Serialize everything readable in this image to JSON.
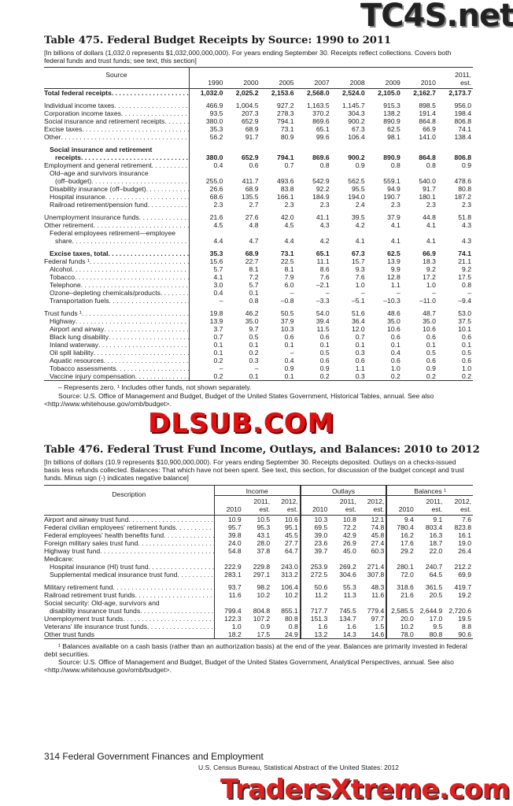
{
  "watermarks": {
    "top": "TC4S.net",
    "middle": "DLSUB.COM",
    "bottom": "TradersXtreme.com"
  },
  "t475": {
    "title": "Table 475. Federal Budget Receipts by Source: 1990 to 2011",
    "headnote": "[In billions of dollars (1,032.0 represents $1,032,000,000,000). For years ending September 30. Receipts reflect collections. Covers both federal funds and trust funds; see text, this section]",
    "stub_header": "Source",
    "columns": [
      "1990",
      "2000",
      "2005",
      "2007",
      "2008",
      "2009",
      "2010",
      "2011, est."
    ],
    "rows": [
      {
        "label": "Total federal receipts",
        "bold": true,
        "indent": 0,
        "values": [
          "1,032.0",
          "2,025.2",
          "2,153.6",
          "2,568.0",
          "2,524.0",
          "2,105.0",
          "2,162.7",
          "2,173.7"
        ]
      },
      {
        "spacer": true
      },
      {
        "label": "Individual income taxes",
        "indent": 0,
        "values": [
          "466.9",
          "1,004.5",
          "927.2",
          "1,163.5",
          "1,145.7",
          "915.3",
          "898.5",
          "956.0"
        ]
      },
      {
        "label": "Corporation income taxes",
        "indent": 0,
        "values": [
          "93.5",
          "207.3",
          "278.3",
          "370.2",
          "304.3",
          "138.2",
          "191.4",
          "198.4"
        ]
      },
      {
        "label": "Social insurance and retirement receipts",
        "indent": 0,
        "values": [
          "380.0",
          "652.9",
          "794.1",
          "869.6",
          "900.2",
          "890.9",
          "864.8",
          "806.8"
        ]
      },
      {
        "label": "Excise taxes",
        "indent": 0,
        "values": [
          "35.3",
          "68.9",
          "73.1",
          "65.1",
          "67.3",
          "62.5",
          "66.9",
          "74.1"
        ]
      },
      {
        "label": "Other",
        "indent": 0,
        "values": [
          "56.2",
          "91.7",
          "80.9",
          "99.6",
          "106.4",
          "98.1",
          "141.0",
          "138.4"
        ]
      },
      {
        "spacer": true
      },
      {
        "label": "Social insurance and retirement",
        "bold": true,
        "indent": 1,
        "nodots": true,
        "values": []
      },
      {
        "label": "receipts",
        "bold": true,
        "indent": 2,
        "values": [
          "380.0",
          "652.9",
          "794.1",
          "869.6",
          "900.2",
          "890.9",
          "864.8",
          "806.8"
        ]
      },
      {
        "label": "Employment and general retirement",
        "indent": 0,
        "values": [
          "0.4",
          "0.6",
          "0.7",
          "0.8",
          "0.9",
          "0.8",
          "0.8",
          "0.9"
        ]
      },
      {
        "label": "Old–age and survivors insurance",
        "indent": 1,
        "nodots": true,
        "values": []
      },
      {
        "label": "(off–budget)",
        "indent": 2,
        "values": [
          "255.0",
          "411.7",
          "493.6",
          "542.9",
          "562.5",
          "559.1",
          "540.0",
          "478.6"
        ]
      },
      {
        "label": "Disability insurance (off–budget)",
        "indent": 1,
        "values": [
          "26.6",
          "68.9",
          "83.8",
          "92.2",
          "95.5",
          "94.9",
          "91.7",
          "80.8"
        ]
      },
      {
        "label": "Hospital insurance",
        "indent": 1,
        "values": [
          "68.6",
          "135.5",
          "166.1",
          "184.9",
          "194.0",
          "190.7",
          "180.1",
          "187.2"
        ]
      },
      {
        "label": "Railroad retirement/pension fund",
        "indent": 1,
        "values": [
          "2.3",
          "2.7",
          "2.3",
          "2.3",
          "2.4",
          "2.3",
          "2.3",
          "2.3"
        ]
      },
      {
        "spacer": true
      },
      {
        "label": "Unemployment insurance funds",
        "indent": 0,
        "values": [
          "21.6",
          "27.6",
          "42.0",
          "41.1",
          "39.5",
          "37.9",
          "44.8",
          "51.8"
        ]
      },
      {
        "label": "Other retirement",
        "indent": 0,
        "values": [
          "4.5",
          "4.8",
          "4.5",
          "4.3",
          "4.2",
          "4.1",
          "4.1",
          "4.3"
        ]
      },
      {
        "label": "Federal employees retirement—employee",
        "indent": 1,
        "nodots": true,
        "values": []
      },
      {
        "label": "share",
        "indent": 2,
        "values": [
          "4.4",
          "4.7",
          "4.4",
          "4.2",
          "4.1",
          "4.1",
          "4.1",
          "4.3"
        ]
      },
      {
        "spacer": true
      },
      {
        "label": "Excise taxes, total",
        "bold": true,
        "indent": 1,
        "values": [
          "35.3",
          "68.9",
          "73.1",
          "65.1",
          "67.3",
          "62.5",
          "66.9",
          "74.1"
        ]
      },
      {
        "label": "Federal funds ¹",
        "indent": 0,
        "values": [
          "15.6",
          "22.7",
          "22.5",
          "11.1",
          "15.7",
          "13.9",
          "18.3",
          "21.1"
        ]
      },
      {
        "label": "Alcohol",
        "indent": 1,
        "values": [
          "5.7",
          "8.1",
          "8.1",
          "8.6",
          "9.3",
          "9.9",
          "9.2",
          "9.2"
        ]
      },
      {
        "label": "Tobacco",
        "indent": 1,
        "values": [
          "4.1",
          "7.2",
          "7.9",
          "7.6",
          "7.6",
          "12.8",
          "17.2",
          "17.5"
        ]
      },
      {
        "label": "Telephone",
        "indent": 1,
        "values": [
          "3.0",
          "5.7",
          "6.0",
          "–2.1",
          "1.0",
          "1.1",
          "1.0",
          "0.8"
        ]
      },
      {
        "label": "Ozone–depleting chemicals/products",
        "indent": 1,
        "values": [
          "0.4",
          "0.1",
          "–",
          "–",
          "–",
          "–",
          "–",
          "–"
        ]
      },
      {
        "label": "Transportation fuels",
        "indent": 1,
        "values": [
          "–",
          "0.8",
          "–0.8",
          "–3.3",
          "–5.1",
          "–10.3",
          "–11.0",
          "–9.4"
        ]
      },
      {
        "spacer": true
      },
      {
        "label": "Trust funds ¹",
        "indent": 0,
        "values": [
          "19.8",
          "46.2",
          "50.5",
          "54.0",
          "51.6",
          "48.6",
          "48.7",
          "53.0"
        ]
      },
      {
        "label": "Highway",
        "indent": 1,
        "values": [
          "13.9",
          "35.0",
          "37.9",
          "39.4",
          "36.4",
          "35.0",
          "35.0",
          "37.5"
        ]
      },
      {
        "label": "Airport and airway",
        "indent": 1,
        "values": [
          "3.7",
          "9.7",
          "10.3",
          "11.5",
          "12.0",
          "10.6",
          "10.6",
          "10.1"
        ]
      },
      {
        "label": "Black lung disability",
        "indent": 1,
        "values": [
          "0.7",
          "0.5",
          "0.6",
          "0.6",
          "0.7",
          "0.6",
          "0.6",
          "0.6"
        ]
      },
      {
        "label": "Inland waterway",
        "indent": 1,
        "values": [
          "0.1",
          "0.1",
          "0.1",
          "0.1",
          "0.1",
          "0.1",
          "0.1",
          "0.1"
        ]
      },
      {
        "label": "Oil spill liability",
        "indent": 1,
        "values": [
          "0.1",
          "0.2",
          "–",
          "0.5",
          "0.3",
          "0.4",
          "0.5",
          "0.5"
        ]
      },
      {
        "label": "Aquatic resources",
        "indent": 1,
        "values": [
          "0.2",
          "0.3",
          "0.4",
          "0.6",
          "0.6",
          "0.6",
          "0.6",
          "0.6"
        ]
      },
      {
        "label": "Tobacco assessments",
        "indent": 1,
        "values": [
          "–",
          "–",
          "0.9",
          "0.9",
          "1.1",
          "1.0",
          "0.9",
          "1.0"
        ]
      },
      {
        "label": "Vaccine injury compensation",
        "indent": 1,
        "values": [
          "0.2",
          "0.1",
          "0.1",
          "0.2",
          "0.3",
          "0.2",
          "0.2",
          "0.2"
        ]
      }
    ],
    "footnote": "– Represents zero. ¹ Includes other funds, not shown separately.",
    "source": "Source: U.S. Office of Management and Budget, Budget of the United States Government, Historical Tables, annual. See also <http://www.whitehouse.gov/omb/budget>."
  },
  "t476": {
    "title": "Table 476. Federal Trust Fund Income, Outlays, and Balances: 2010 to 2012",
    "headnote": "[In billions of dollars (10.9 represents $10,900,000,000). For years ending September 30. Receipts deposited. Outlays on a checks-issued basis less refunds collected. Balances: That which have not been spent. See text, this section, for discussion of the budget concept and trust funds. Minus sign (-) indicates negative balance]",
    "stub_header": "Description",
    "groups": [
      "Income",
      "Outlays",
      "Balances ¹"
    ],
    "columns": [
      "2010",
      "2011, est.",
      "2012, est.",
      "2010",
      "2011, est.",
      "2012, est.",
      "2010",
      "2011, est.",
      "2012, est."
    ],
    "rows": [
      {
        "label": "Airport and airway trust fund",
        "indent": 0,
        "values": [
          "10.9",
          "10.5",
          "10.6",
          "10.3",
          "10.8",
          "12.1",
          "9.4",
          "9.1",
          "7.6"
        ]
      },
      {
        "label": "Federal civilian employees' retirement funds",
        "indent": 0,
        "values": [
          "95.7",
          "95.3",
          "95.1",
          "69.5",
          "72.2",
          "74.8",
          "780.4",
          "803.4",
          "823.8"
        ]
      },
      {
        "label": "Federal employees' health benefits fund",
        "indent": 0,
        "values": [
          "39.8",
          "43.1",
          "45.5",
          "39.0",
          "42.9",
          "45.8",
          "16.2",
          "16.3",
          "16.1"
        ]
      },
      {
        "label": "Foreign military sales trust fund",
        "indent": 0,
        "values": [
          "24.0",
          "28.0",
          "27.7",
          "23.6",
          "26.9",
          "27.4",
          "17.6",
          "18.7",
          "19.0"
        ]
      },
      {
        "label": "Highway trust fund",
        "indent": 0,
        "values": [
          "54.8",
          "37.8",
          "64.7",
          "39.7",
          "45.0",
          "60.3",
          "29.2",
          "22.0",
          "26.4"
        ]
      },
      {
        "label": "Medicare:",
        "indent": 0,
        "values": []
      },
      {
        "label": "Hospital insurance (HI) trust fund",
        "indent": 1,
        "values": [
          "222.9",
          "229.8",
          "243.0",
          "253.9",
          "269.2",
          "271.4",
          "280.1",
          "240.7",
          "212.2"
        ]
      },
      {
        "label": "Supplemental medical insurance trust fund",
        "indent": 1,
        "values": [
          "283.1",
          "297.1",
          "313.2",
          "272.5",
          "304.6",
          "307.8",
          "72.0",
          "64.5",
          "69.9"
        ]
      },
      {
        "spacer": true
      },
      {
        "label": "Military retirement fund",
        "indent": 0,
        "values": [
          "93.7",
          "98.2",
          "106.4",
          "50.6",
          "55.3",
          "48.3",
          "318.6",
          "361.5",
          "419.7"
        ]
      },
      {
        "label": "Railroad retirement trust funds",
        "indent": 0,
        "values": [
          "11.6",
          "10.2",
          "10.2",
          "11.2",
          "11.3",
          "11.6",
          "21.6",
          "20.5",
          "19.2"
        ]
      },
      {
        "label": "Social security: Old-age, survivors and",
        "indent": 0,
        "nodots": true,
        "values": []
      },
      {
        "label": "disability insurance trust funds",
        "indent": 1,
        "values": [
          "799.4",
          "804.8",
          "855.1",
          "717.7",
          "745.5",
          "779.4",
          "2,585.5",
          "2,644.9",
          "2,720.6"
        ]
      },
      {
        "label": "Unemployment trust funds",
        "indent": 0,
        "values": [
          "122.3",
          "107.2",
          "80.8",
          "151.3",
          "134.7",
          "97.7",
          "20.0",
          "17.0",
          "19.5"
        ]
      },
      {
        "label": "Veterans' life insurance trust funds",
        "indent": 0,
        "values": [
          "1.0",
          "0.9",
          "0.8",
          "1.6",
          "1.6",
          "1.5",
          "10.2",
          "9.5",
          "8.8"
        ]
      },
      {
        "label": "Other trust funds",
        "indent": 0,
        "nodots": true,
        "values": [
          "18.2",
          "17.5",
          "24.9",
          "13.2",
          "14.3",
          "14.6",
          "78.0",
          "80.8",
          "90.6"
        ]
      }
    ],
    "footnote": "¹ Balances available on a cash basis (rather than an authorization basis) at the end of the year. Balances are primarily invested in federal debt securities.",
    "source": "Source: U.S. Office of Management and Budget, Budget of the United States Government, Analytical Perspectives, annual. See also <http://www.whitehouse.gov/omb/budget>."
  },
  "footer": {
    "page": "314  Federal Government Finances and Employment",
    "publication": "U.S. Census Bureau, Statistical Abstract of the United States: 2012"
  }
}
